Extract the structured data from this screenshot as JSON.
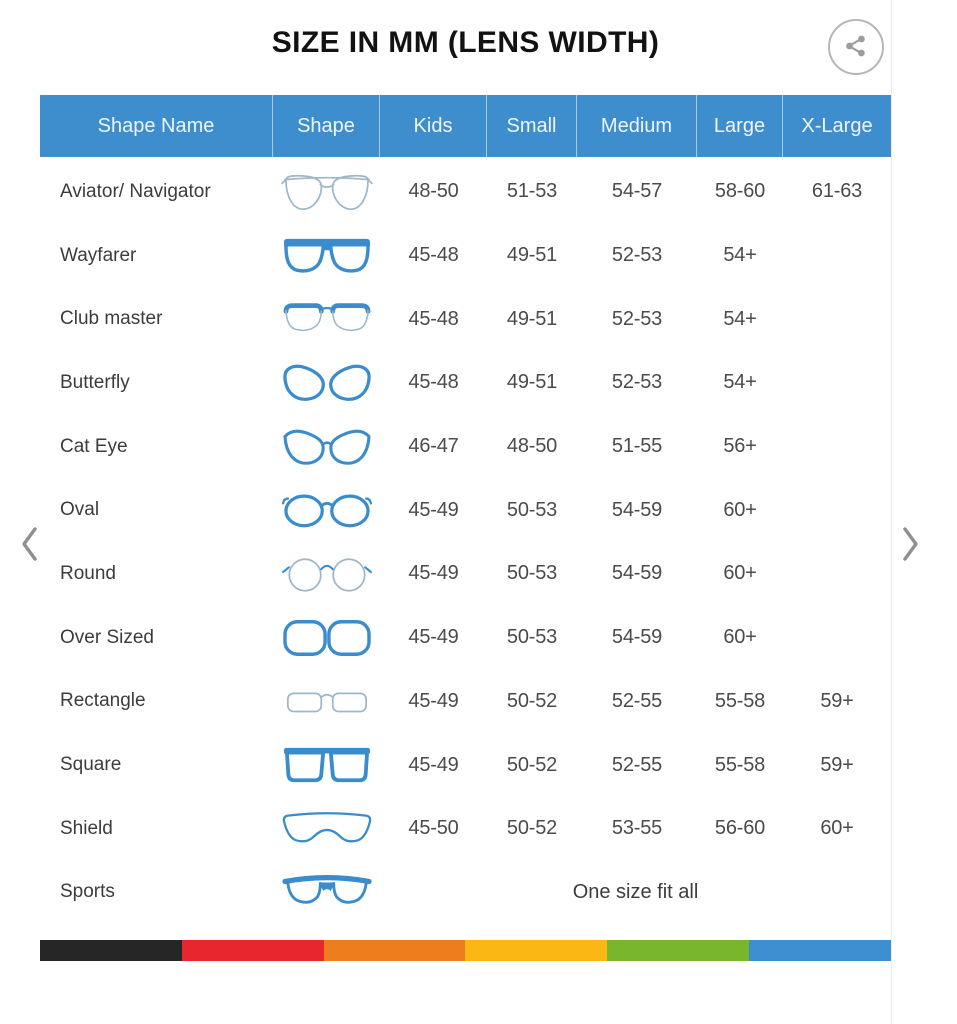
{
  "page": {
    "title": "SIZE IN MM (LENS WIDTH)"
  },
  "icons": {
    "share": "share-icon",
    "prev": "chevron-left-icon",
    "next": "chevron-right-icon"
  },
  "colors": {
    "header_bg": "#3e8ecd",
    "header_text": "#eef5fb",
    "frame_blue": "#3a8ccd",
    "frame_light": "#9db7c9",
    "stripe": [
      "#262626",
      "#e8262d",
      "#ee7d1e",
      "#fbb713",
      "#7ab62c",
      "#3d8fd2"
    ]
  },
  "table": {
    "headers": [
      "Shape Name",
      "Shape",
      "Kids",
      "Small",
      "Medium",
      "Large",
      "X-Large"
    ],
    "rows": [
      {
        "name": "Aviator/ Navigator",
        "icon": "aviator",
        "sizes": [
          "48-50",
          "51-53",
          "54-57",
          "58-60",
          "61-63"
        ]
      },
      {
        "name": "Wayfarer",
        "icon": "wayfarer",
        "sizes": [
          "45-48",
          "49-51",
          "52-53",
          "54+",
          ""
        ]
      },
      {
        "name": "Club master",
        "icon": "clubmaster",
        "sizes": [
          "45-48",
          "49-51",
          "52-53",
          "54+",
          ""
        ]
      },
      {
        "name": "Butterfly",
        "icon": "butterfly",
        "sizes": [
          "45-48",
          "49-51",
          "52-53",
          "54+",
          ""
        ]
      },
      {
        "name": "Cat Eye",
        "icon": "cateye",
        "sizes": [
          "46-47",
          "48-50",
          "51-55",
          "56+",
          ""
        ]
      },
      {
        "name": "Oval",
        "icon": "oval",
        "sizes": [
          "45-49",
          "50-53",
          "54-59",
          "60+",
          ""
        ]
      },
      {
        "name": "Round",
        "icon": "round",
        "sizes": [
          "45-49",
          "50-53",
          "54-59",
          "60+",
          ""
        ]
      },
      {
        "name": "Over Sized",
        "icon": "oversized",
        "sizes": [
          "45-49",
          "50-53",
          "54-59",
          "60+",
          ""
        ]
      },
      {
        "name": "Rectangle",
        "icon": "rectangle",
        "sizes": [
          "45-49",
          "50-52",
          "52-55",
          "55-58",
          "59+"
        ]
      },
      {
        "name": "Square",
        "icon": "square",
        "sizes": [
          "45-49",
          "50-52",
          "52-55",
          "55-58",
          "59+"
        ]
      },
      {
        "name": "Shield",
        "icon": "shield",
        "sizes": [
          "45-50",
          "50-52",
          "53-55",
          "56-60",
          "60+"
        ]
      },
      {
        "name": "Sports",
        "icon": "sports",
        "span_text": "One size fit all"
      }
    ]
  }
}
